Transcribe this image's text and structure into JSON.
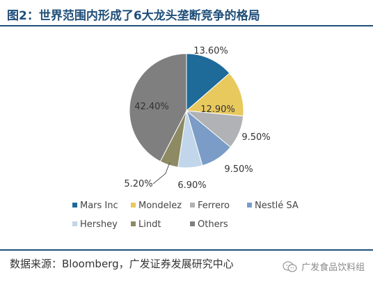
{
  "title": "图2：世界范围内形成了6大龙头垄断竞争的格局",
  "source": "数据来源：Bloomberg，广发证券发展研究中心",
  "watermark": "广发食品饮料组",
  "chart_data": {
    "type": "pie",
    "title": "",
    "legend_position": "bottom",
    "categories": [
      "Mars Inc",
      "Mondelez",
      "Ferrero",
      "Nestlé SA",
      "Hershey",
      "Lindt",
      "Others"
    ],
    "values": [
      13.6,
      12.9,
      9.5,
      9.5,
      6.9,
      5.2,
      42.4
    ],
    "labels": [
      "13.60%",
      "12.90%",
      "9.50%",
      "9.50%",
      "6.90%",
      "5.20%",
      "42.40%"
    ],
    "colors": [
      "#1e6a99",
      "#e8c95e",
      "#b0b2b5",
      "#7a9cc6",
      "#c1d6ea",
      "#8d8a64",
      "#7f7f7f"
    ]
  }
}
